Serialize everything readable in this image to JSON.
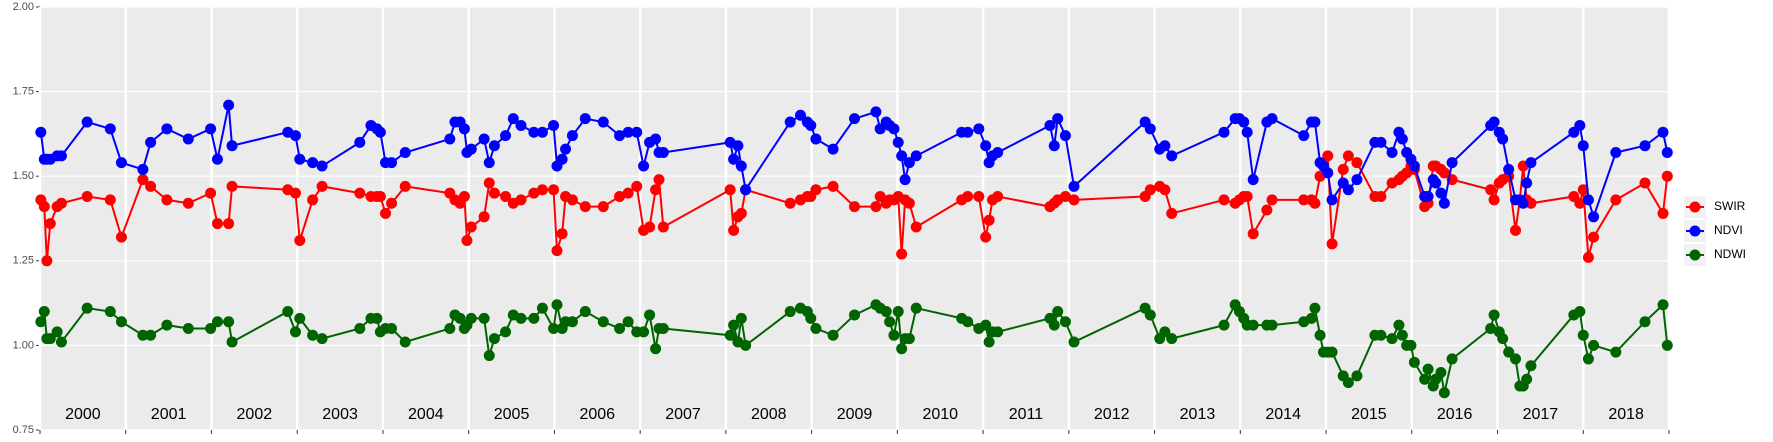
{
  "chart_data": {
    "type": "line",
    "x": [
      2000.01,
      2000.05,
      2000.08,
      2000.12,
      2000.2,
      2000.25,
      2000.55,
      2000.82,
      2000.95,
      2001.2,
      2001.29,
      2001.48,
      2001.73,
      2001.99,
      2002.07,
      2002.2,
      2002.24,
      2002.89,
      2002.98,
      2003.03,
      2003.18,
      2003.29,
      2003.73,
      2003.86,
      2003.93,
      2003.97,
      2004.03,
      2004.1,
      2004.26,
      2004.78,
      2004.84,
      2004.9,
      2004.95,
      2004.98,
      2005.03,
      2005.18,
      2005.24,
      2005.3,
      2005.43,
      2005.52,
      2005.61,
      2005.76,
      2005.86,
      2005.99,
      2006.03,
      2006.09,
      2006.13,
      2006.21,
      2006.36,
      2006.57,
      2006.76,
      2006.86,
      2006.96,
      2007.04,
      2007.11,
      2007.18,
      2007.22,
      2007.27,
      2008.05,
      2008.09,
      2008.14,
      2008.18,
      2008.23,
      2008.75,
      2008.87,
      2008.95,
      2008.99,
      2009.05,
      2009.25,
      2009.5,
      2009.75,
      2009.8,
      2009.87,
      2009.91,
      2009.96,
      2010.01,
      2010.05,
      2010.09,
      2010.14,
      2010.22,
      2010.75,
      2010.82,
      2010.95,
      2011.03,
      2011.07,
      2011.11,
      2011.17,
      2011.78,
      2011.83,
      2011.87,
      2011.96,
      2012.06,
      2012.89,
      2012.95,
      2013.06,
      2013.12,
      2013.2,
      2013.81,
      2013.94,
      2013.99,
      2014.04,
      2014.08,
      2014.15,
      2014.31,
      2014.37,
      2014.74,
      2014.83,
      2014.87,
      2014.93,
      2014.97,
      2015.02,
      2015.07,
      2015.2,
      2015.26,
      2015.36,
      2015.57,
      2015.64,
      2015.77,
      2015.85,
      2015.89,
      2015.94,
      2015.99,
      2016.03,
      2016.15,
      2016.19,
      2016.25,
      2016.28,
      2016.34,
      2016.38,
      2016.47,
      2016.92,
      2016.96,
      2017.02,
      2017.06,
      2017.13,
      2017.21,
      2017.26,
      2017.3,
      2017.34,
      2017.39,
      2017.89,
      2017.96,
      2018.0,
      2018.06,
      2018.12,
      2018.38,
      2018.72,
      2018.93,
      2018.98
    ],
    "series": [
      {
        "name": "SWIR",
        "color": "#ff0000",
        "values": [
          1.43,
          1.41,
          1.25,
          1.36,
          1.41,
          1.42,
          1.44,
          1.43,
          1.32,
          1.49,
          1.47,
          1.43,
          1.42,
          1.45,
          1.36,
          1.36,
          1.47,
          1.46,
          1.45,
          1.31,
          1.43,
          1.47,
          1.45,
          1.44,
          1.44,
          1.44,
          1.39,
          1.42,
          1.47,
          1.45,
          1.43,
          1.42,
          1.44,
          1.31,
          1.35,
          1.38,
          1.48,
          1.45,
          1.44,
          1.42,
          1.43,
          1.45,
          1.46,
          1.46,
          1.28,
          1.33,
          1.44,
          1.43,
          1.41,
          1.41,
          1.44,
          1.45,
          1.47,
          1.34,
          1.35,
          1.46,
          1.49,
          1.35,
          1.46,
          1.34,
          1.38,
          1.39,
          1.46,
          1.42,
          1.43,
          1.44,
          1.44,
          1.46,
          1.47,
          1.41,
          1.41,
          1.44,
          1.42,
          1.43,
          1.43,
          1.44,
          1.27,
          1.43,
          1.42,
          1.35,
          1.43,
          1.44,
          1.44,
          1.32,
          1.37,
          1.43,
          1.44,
          1.41,
          1.42,
          1.43,
          1.44,
          1.43,
          1.44,
          1.46,
          1.47,
          1.46,
          1.39,
          1.43,
          1.42,
          1.43,
          1.44,
          1.44,
          1.33,
          1.4,
          1.43,
          1.43,
          1.43,
          1.42,
          1.5,
          1.53,
          1.56,
          1.3,
          1.52,
          1.56,
          1.54,
          1.44,
          1.44,
          1.48,
          1.49,
          1.5,
          1.51,
          1.53,
          1.52,
          1.41,
          1.42,
          1.53,
          1.53,
          1.52,
          1.51,
          1.49,
          1.46,
          1.43,
          1.48,
          1.49,
          1.5,
          1.34,
          1.43,
          1.53,
          1.43,
          1.42,
          1.44,
          1.42,
          1.46,
          1.26,
          1.32,
          1.43,
          1.48,
          1.39,
          1.5
        ]
      },
      {
        "name": "NDVI",
        "color": "#0000ff",
        "values": [
          1.63,
          1.55,
          1.55,
          1.55,
          1.56,
          1.56,
          1.66,
          1.64,
          1.54,
          1.52,
          1.6,
          1.64,
          1.61,
          1.64,
          1.55,
          1.71,
          1.59,
          1.63,
          1.62,
          1.55,
          1.54,
          1.53,
          1.6,
          1.65,
          1.64,
          1.63,
          1.54,
          1.54,
          1.57,
          1.61,
          1.66,
          1.66,
          1.64,
          1.57,
          1.58,
          1.61,
          1.54,
          1.59,
          1.62,
          1.67,
          1.65,
          1.63,
          1.63,
          1.65,
          1.53,
          1.55,
          1.58,
          1.62,
          1.67,
          1.66,
          1.62,
          1.63,
          1.63,
          1.53,
          1.6,
          1.61,
          1.57,
          1.57,
          1.6,
          1.55,
          1.59,
          1.53,
          1.46,
          1.66,
          1.68,
          1.66,
          1.65,
          1.61,
          1.58,
          1.67,
          1.69,
          1.64,
          1.66,
          1.65,
          1.64,
          1.6,
          1.56,
          1.49,
          1.54,
          1.56,
          1.63,
          1.63,
          1.64,
          1.59,
          1.54,
          1.56,
          1.57,
          1.65,
          1.59,
          1.67,
          1.62,
          1.47,
          1.66,
          1.64,
          1.58,
          1.59,
          1.56,
          1.63,
          1.67,
          1.67,
          1.66,
          1.63,
          1.49,
          1.66,
          1.67,
          1.62,
          1.66,
          1.66,
          1.54,
          1.53,
          1.51,
          1.43,
          1.48,
          1.46,
          1.49,
          1.6,
          1.6,
          1.57,
          1.63,
          1.61,
          1.57,
          1.55,
          1.53,
          1.44,
          1.44,
          1.49,
          1.48,
          1.45,
          1.42,
          1.54,
          1.65,
          1.66,
          1.63,
          1.61,
          1.52,
          1.43,
          1.43,
          1.42,
          1.48,
          1.54,
          1.63,
          1.65,
          1.59,
          1.43,
          1.38,
          1.57,
          1.59,
          1.63,
          1.57
        ]
      },
      {
        "name": "NDWI",
        "color": "#006400",
        "values": [
          1.07,
          1.1,
          1.02,
          1.02,
          1.04,
          1.01,
          1.11,
          1.1,
          1.07,
          1.03,
          1.03,
          1.06,
          1.05,
          1.05,
          1.07,
          1.07,
          1.01,
          1.1,
          1.04,
          1.08,
          1.03,
          1.02,
          1.05,
          1.08,
          1.08,
          1.04,
          1.05,
          1.05,
          1.01,
          1.05,
          1.09,
          1.08,
          1.05,
          1.06,
          1.08,
          1.08,
          0.97,
          1.02,
          1.04,
          1.09,
          1.08,
          1.08,
          1.11,
          1.05,
          1.12,
          1.05,
          1.07,
          1.07,
          1.1,
          1.07,
          1.05,
          1.07,
          1.04,
          1.04,
          1.09,
          0.99,
          1.05,
          1.05,
          1.03,
          1.06,
          1.01,
          1.08,
          1.0,
          1.1,
          1.11,
          1.1,
          1.08,
          1.05,
          1.03,
          1.09,
          1.12,
          1.11,
          1.1,
          1.07,
          1.03,
          1.1,
          0.99,
          1.02,
          1.02,
          1.11,
          1.08,
          1.07,
          1.05,
          1.06,
          1.01,
          1.04,
          1.04,
          1.08,
          1.06,
          1.1,
          1.07,
          1.01,
          1.11,
          1.09,
          1.02,
          1.04,
          1.02,
          1.06,
          1.12,
          1.1,
          1.08,
          1.06,
          1.06,
          1.06,
          1.06,
          1.07,
          1.08,
          1.11,
          1.03,
          0.98,
          0.98,
          0.98,
          0.91,
          0.89,
          0.91,
          1.03,
          1.03,
          1.02,
          1.06,
          1.03,
          1.0,
          1.0,
          0.95,
          0.9,
          0.93,
          0.88,
          0.9,
          0.92,
          0.86,
          0.96,
          1.05,
          1.09,
          1.04,
          1.02,
          0.98,
          0.96,
          0.88,
          0.88,
          0.9,
          0.94,
          1.09,
          1.1,
          1.03,
          0.96,
          1.0,
          0.98,
          1.07,
          1.12,
          1.0
        ]
      }
    ],
    "year_labels": [
      "2000",
      "2001",
      "2002",
      "2003",
      "2004",
      "2005",
      "2006",
      "2007",
      "2008",
      "2009",
      "2010",
      "2011",
      "2012",
      "2013",
      "2014",
      "2015",
      "2016",
      "2017",
      "2018"
    ],
    "xlim": [
      2000,
      2019
    ],
    "xticks": [
      2000,
      2001,
      2002,
      2003,
      2004,
      2005,
      2006,
      2007,
      2008,
      2009,
      2010,
      2011,
      2012,
      2013,
      2014,
      2015,
      2016,
      2017,
      2018,
      2019
    ],
    "ylim": [
      0.75,
      2.0
    ],
    "yticks": [
      {
        "value": 0.75,
        "label": "0.75"
      },
      {
        "value": 1.0,
        "label": "1.00"
      },
      {
        "value": 1.25,
        "label": "1.25"
      },
      {
        "value": 1.5,
        "label": "1.50"
      },
      {
        "value": 1.75,
        "label": "1.75"
      },
      {
        "value": 2.0,
        "label": "2.00"
      }
    ],
    "grid": true,
    "legend": "right"
  }
}
